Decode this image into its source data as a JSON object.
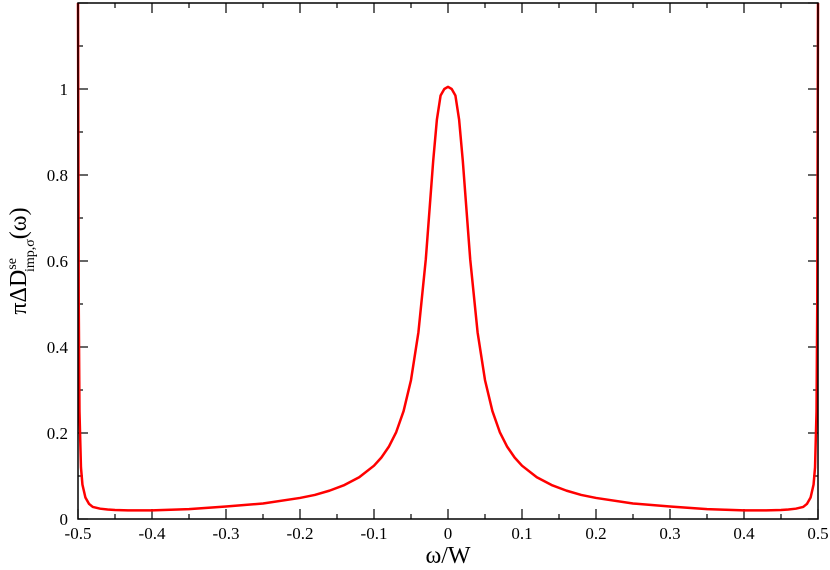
{
  "chart_data": {
    "type": "line",
    "xlabel": "ω/W",
    "ylabel": {
      "main": "πΔD",
      "superscript": "se",
      "subscript": "imp,σ",
      "suffix": "(ω)"
    },
    "xlim": [
      -0.5,
      0.5
    ],
    "ylim": [
      0,
      1.2
    ],
    "xticks": [
      -0.5,
      -0.4,
      -0.3,
      -0.2,
      -0.1,
      0,
      0.1,
      0.2,
      0.3,
      0.4,
      0.5
    ],
    "xtick_labels": [
      "-0.5",
      "-0.4",
      "-0.3",
      "-0.2",
      "-0.1",
      "0",
      "0.1",
      "0.2",
      "0.3",
      "0.4",
      "0.5"
    ],
    "yticks": [
      0,
      0.2,
      0.4,
      0.6,
      0.8,
      1
    ],
    "ytick_labels": [
      "0",
      "0.2",
      "0.4",
      "0.6",
      "0.8",
      "1"
    ],
    "grid": false,
    "series": [
      {
        "color": "#ff0000",
        "x": [
          -0.5,
          -0.499,
          -0.498,
          -0.496,
          -0.494,
          -0.49,
          -0.485,
          -0.48,
          -0.47,
          -0.46,
          -0.45,
          -0.43,
          -0.4,
          -0.35,
          -0.3,
          -0.25,
          -0.2,
          -0.18,
          -0.16,
          -0.14,
          -0.12,
          -0.1,
          -0.09,
          -0.08,
          -0.07,
          -0.06,
          -0.05,
          -0.04,
          -0.03,
          -0.02,
          -0.015,
          -0.01,
          -0.005,
          0,
          0.005,
          0.01,
          0.015,
          0.02,
          0.03,
          0.04,
          0.05,
          0.06,
          0.07,
          0.08,
          0.09,
          0.1,
          0.12,
          0.14,
          0.16,
          0.18,
          0.2,
          0.25,
          0.3,
          0.35,
          0.4,
          0.43,
          0.45,
          0.46,
          0.47,
          0.48,
          0.485,
          0.49,
          0.494,
          0.496,
          0.498,
          0.499,
          0.5
        ],
        "y": [
          1.2,
          0.5,
          0.25,
          0.12,
          0.08,
          0.05,
          0.035,
          0.028,
          0.024,
          0.022,
          0.021,
          0.02,
          0.02,
          0.023,
          0.029,
          0.036,
          0.049,
          0.056,
          0.066,
          0.079,
          0.097,
          0.124,
          0.143,
          0.168,
          0.202,
          0.251,
          0.323,
          0.434,
          0.604,
          0.833,
          0.929,
          0.985,
          1.0,
          1.005,
          1.0,
          0.985,
          0.929,
          0.833,
          0.604,
          0.434,
          0.323,
          0.251,
          0.202,
          0.168,
          0.143,
          0.124,
          0.097,
          0.079,
          0.066,
          0.056,
          0.049,
          0.036,
          0.029,
          0.023,
          0.02,
          0.02,
          0.021,
          0.022,
          0.024,
          0.028,
          0.035,
          0.05,
          0.08,
          0.12,
          0.25,
          0.5,
          1.2
        ]
      }
    ]
  }
}
